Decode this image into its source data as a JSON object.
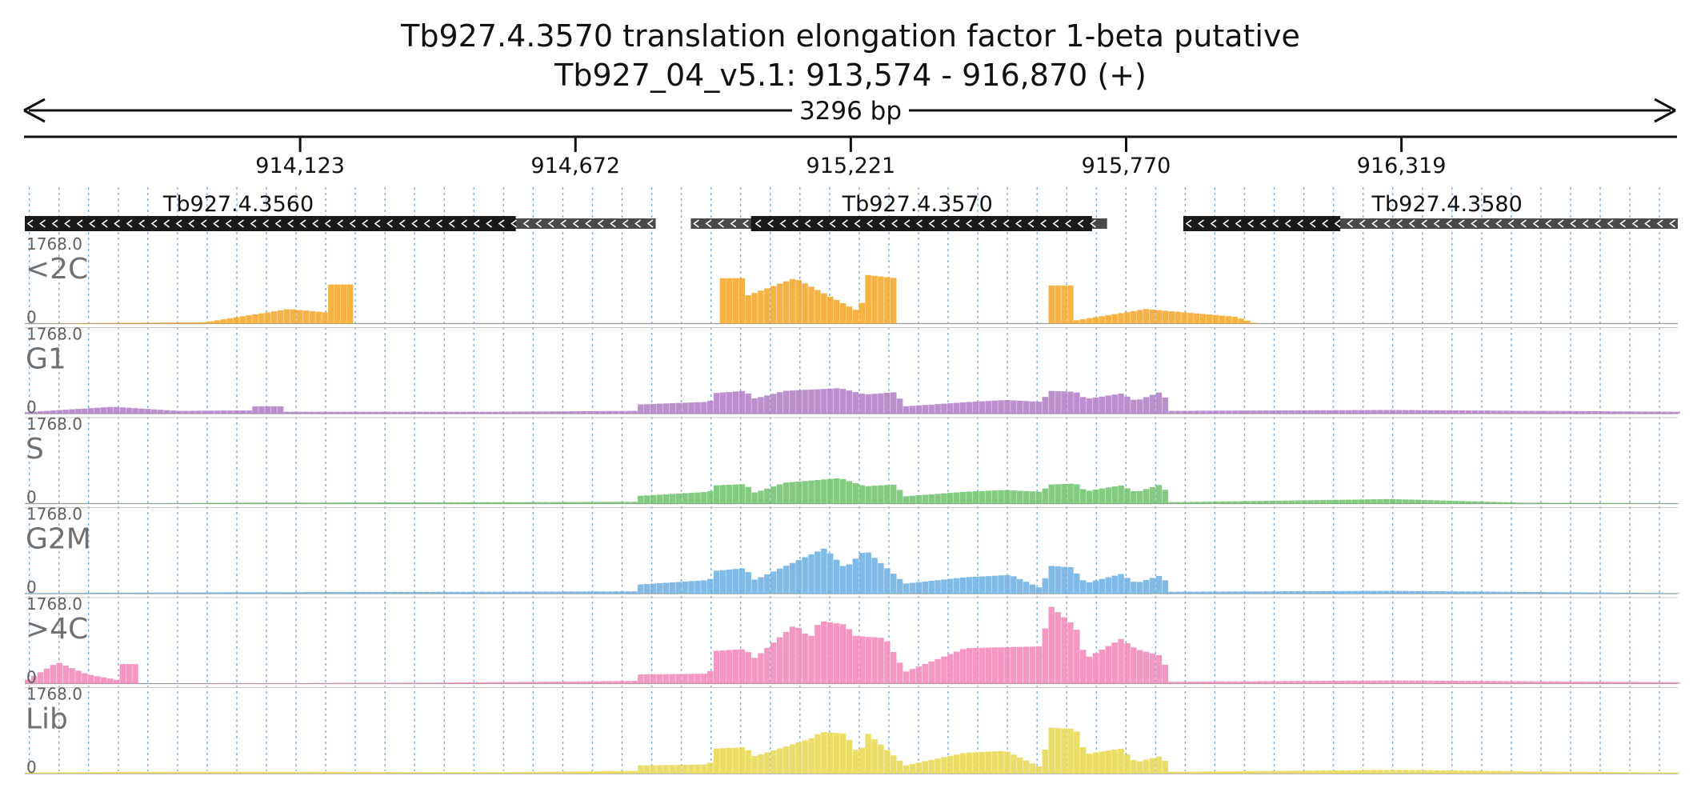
{
  "title": {
    "gene_line": "Tb927.4.3570  translation elongation factor 1-beta  putative",
    "locus_line": "Tb927_04_v5.1: 913,574 - 916,870 (+)"
  },
  "span_label": "3296 bp",
  "colors": {
    "text": "#111111",
    "grid": "#7aaede",
    "gene_cds": "#1a1a1a",
    "gene_utr": "#4a4a4a"
  },
  "chart_data": {
    "type": "area",
    "chart_kind": "genome browser coverage tracks",
    "xlim": [
      913574,
      916870
    ],
    "xticks": [
      914123,
      914672,
      915221,
      915770,
      916319
    ],
    "xtick_labels": [
      "914,123",
      "914,672",
      "915,221",
      "915,770",
      "916,319"
    ],
    "genes": [
      {
        "name": "Tb927.4.3560",
        "strand": "-",
        "cds": [
          913574,
          914553
        ],
        "utr": [
          914553,
          914832
        ]
      },
      {
        "name": "Tb927.4.3570",
        "strand": "-",
        "cds": [
          915022,
          915702
        ],
        "utr": [
          914902,
          915732
        ]
      },
      {
        "name": "Tb927.4.3580",
        "strand": "-",
        "cds": [
          915884,
          916197
        ],
        "utr": [
          916197,
          916870
        ]
      }
    ],
    "ylim": [
      0,
      1768.0
    ],
    "segments": [
      {
        "from": 913574,
        "to": 913934,
        "r": [
          1,
          3
        ]
      },
      {
        "from": 913934,
        "to": 914033,
        "r": [
          3,
          2
        ]
      },
      {
        "from": 914033,
        "to": 914174,
        "r": [
          2,
          5
        ]
      },
      {
        "from": 914174,
        "to": 914203,
        "r": [
          12,
          14
        ]
      },
      {
        "from": 914203,
        "to": 914443,
        "r": [
          2,
          1
        ]
      },
      {
        "from": 914443,
        "to": 914803,
        "r": [
          1,
          3
        ]
      },
      {
        "from": 914803,
        "to": 914886,
        "r": [
          3,
          4
        ]
      },
      {
        "from": 914886,
        "to": 914956,
        "r": [
          8,
          9
        ]
      },
      {
        "from": 914956,
        "to": 915103,
        "r": [
          10,
          12
        ]
      },
      {
        "from": 915103,
        "to": 915173,
        "r": [
          10,
          13
        ]
      },
      {
        "from": 915173,
        "to": 915267,
        "r": [
          10,
          14
        ]
      },
      {
        "from": 915267,
        "to": 915330,
        "r": [
          12,
          10
        ]
      },
      {
        "from": 915330,
        "to": 915436,
        "r": [
          4,
          3
        ]
      },
      {
        "from": 915436,
        "to": 915493,
        "r": [
          5,
          3
        ]
      },
      {
        "from": 915493,
        "to": 915582,
        "r": [
          3,
          4
        ]
      },
      {
        "from": 915582,
        "to": 915656,
        "r": [
          11,
          13
        ]
      },
      {
        "from": 915656,
        "to": 915721,
        "r": [
          11,
          10
        ]
      },
      {
        "from": 915721,
        "to": 915824,
        "r": [
          8,
          7
        ]
      },
      {
        "from": 915824,
        "to": 915860,
        "r": [
          8,
          9
        ]
      },
      {
        "from": 915860,
        "to": 916073,
        "r": [
          2,
          1
        ]
      },
      {
        "from": 916073,
        "to": 916299,
        "r": [
          3,
          2
        ]
      },
      {
        "from": 916299,
        "to": 916870,
        "r": [
          1,
          2
        ]
      }
    ],
    "tracks": [
      {
        "name": "<2C",
        "color": "#f5a623",
        "ymax_label": "1768.0",
        "ymin_label": "0",
        "profile": [
          {
            "x": 913574,
            "y": 0
          },
          {
            "x": 913934,
            "y": 30
          },
          {
            "x": 914100,
            "y": 320
          },
          {
            "x": 914172,
            "y": 250
          },
          {
            "x": 914174,
            "y": 240
          },
          {
            "x": 914174,
            "y": 860
          },
          {
            "x": 914232,
            "y": 860
          },
          {
            "x": 914232,
            "y": 0
          },
          {
            "x": 914954,
            "y": 0
          },
          {
            "x": 914954,
            "y": 1000
          },
          {
            "x": 915011,
            "y": 1000
          },
          {
            "x": 915011,
            "y": 600
          },
          {
            "x": 915110,
            "y": 1000
          },
          {
            "x": 915240,
            "y": 250
          },
          {
            "x": 915254,
            "y": 1070
          },
          {
            "x": 915312,
            "y": 1000
          },
          {
            "x": 915312,
            "y": 0
          },
          {
            "x": 915615,
            "y": 0
          },
          {
            "x": 915615,
            "y": 840
          },
          {
            "x": 915664,
            "y": 840
          },
          {
            "x": 915664,
            "y": 60
          },
          {
            "x": 915810,
            "y": 320
          },
          {
            "x": 915989,
            "y": 150
          },
          {
            "x": 916030,
            "y": 0
          },
          {
            "x": 916870,
            "y": 0
          }
        ]
      },
      {
        "name": "G1",
        "color": "#b07cc6",
        "ymax_label": "1768.0",
        "ymin_label": "0",
        "profile": [
          {
            "x": 913574,
            "y": 30
          },
          {
            "x": 913750,
            "y": 150
          },
          {
            "x": 913880,
            "y": 60
          },
          {
            "x": 914030,
            "y": 70
          },
          {
            "x": 914030,
            "y": 160
          },
          {
            "x": 914088,
            "y": 160
          },
          {
            "x": 914088,
            "y": 40
          },
          {
            "x": 914500,
            "y": 40
          },
          {
            "x": 914800,
            "y": 60
          },
          {
            "x": 914800,
            "y": 200
          },
          {
            "x": 914940,
            "y": 260
          },
          {
            "x": 914950,
            "y": 450
          },
          {
            "x": 915010,
            "y": 500
          },
          {
            "x": 915030,
            "y": 330
          },
          {
            "x": 915090,
            "y": 500
          },
          {
            "x": 915200,
            "y": 560
          },
          {
            "x": 915250,
            "y": 420
          },
          {
            "x": 915310,
            "y": 470
          },
          {
            "x": 915330,
            "y": 160
          },
          {
            "x": 915450,
            "y": 250
          },
          {
            "x": 915530,
            "y": 300
          },
          {
            "x": 915600,
            "y": 260
          },
          {
            "x": 915620,
            "y": 500
          },
          {
            "x": 915670,
            "y": 480
          },
          {
            "x": 915690,
            "y": 320
          },
          {
            "x": 915760,
            "y": 440
          },
          {
            "x": 915790,
            "y": 280
          },
          {
            "x": 915845,
            "y": 500
          },
          {
            "x": 915855,
            "y": 60
          },
          {
            "x": 916299,
            "y": 80
          },
          {
            "x": 916880,
            "y": 40
          }
        ]
      },
      {
        "name": "S",
        "color": "#6cc26a",
        "ymax_label": "1768.0",
        "ymin_label": "0",
        "profile": [
          {
            "x": 913574,
            "y": 0
          },
          {
            "x": 913880,
            "y": 10
          },
          {
            "x": 914000,
            "y": 20
          },
          {
            "x": 914500,
            "y": 30
          },
          {
            "x": 914800,
            "y": 40
          },
          {
            "x": 914800,
            "y": 170
          },
          {
            "x": 914940,
            "y": 260
          },
          {
            "x": 914950,
            "y": 400
          },
          {
            "x": 915010,
            "y": 430
          },
          {
            "x": 915030,
            "y": 240
          },
          {
            "x": 915090,
            "y": 460
          },
          {
            "x": 915200,
            "y": 560
          },
          {
            "x": 915250,
            "y": 380
          },
          {
            "x": 915310,
            "y": 420
          },
          {
            "x": 915330,
            "y": 160
          },
          {
            "x": 915450,
            "y": 260
          },
          {
            "x": 915530,
            "y": 300
          },
          {
            "x": 915600,
            "y": 260
          },
          {
            "x": 915620,
            "y": 420
          },
          {
            "x": 915670,
            "y": 440
          },
          {
            "x": 915690,
            "y": 270
          },
          {
            "x": 915760,
            "y": 400
          },
          {
            "x": 915790,
            "y": 250
          },
          {
            "x": 915845,
            "y": 440
          },
          {
            "x": 915855,
            "y": 30
          },
          {
            "x": 916299,
            "y": 100
          },
          {
            "x": 916560,
            "y": 20
          },
          {
            "x": 916870,
            "y": 10
          }
        ]
      },
      {
        "name": "G2M",
        "color": "#6aaee3",
        "ymax_label": "1768.0",
        "ymin_label": "0",
        "profile": [
          {
            "x": 913574,
            "y": 10
          },
          {
            "x": 914000,
            "y": 30
          },
          {
            "x": 914500,
            "y": 40
          },
          {
            "x": 914800,
            "y": 50
          },
          {
            "x": 914800,
            "y": 200
          },
          {
            "x": 914940,
            "y": 300
          },
          {
            "x": 914950,
            "y": 500
          },
          {
            "x": 915010,
            "y": 560
          },
          {
            "x": 915030,
            "y": 300
          },
          {
            "x": 915100,
            "y": 650
          },
          {
            "x": 915170,
            "y": 1000
          },
          {
            "x": 915210,
            "y": 560
          },
          {
            "x": 915250,
            "y": 960
          },
          {
            "x": 915330,
            "y": 220
          },
          {
            "x": 915450,
            "y": 360
          },
          {
            "x": 915540,
            "y": 410
          },
          {
            "x": 915600,
            "y": 120
          },
          {
            "x": 915620,
            "y": 610
          },
          {
            "x": 915660,
            "y": 580
          },
          {
            "x": 915690,
            "y": 230
          },
          {
            "x": 915760,
            "y": 430
          },
          {
            "x": 915790,
            "y": 230
          },
          {
            "x": 915845,
            "y": 420
          },
          {
            "x": 915855,
            "y": 40
          },
          {
            "x": 916299,
            "y": 60
          },
          {
            "x": 916870,
            "y": 10
          }
        ]
      },
      {
        "name": ">4C",
        "color": "#f286b9",
        "ymax_label": "1768.0",
        "ymin_label": "0",
        "profile": [
          {
            "x": 913574,
            "y": 50
          },
          {
            "x": 913640,
            "y": 470
          },
          {
            "x": 913700,
            "y": 200
          },
          {
            "x": 913760,
            "y": 80
          },
          {
            "x": 913760,
            "y": 430
          },
          {
            "x": 913800,
            "y": 430
          },
          {
            "x": 913800,
            "y": 0
          },
          {
            "x": 914100,
            "y": 10
          },
          {
            "x": 914370,
            "y": 20
          },
          {
            "x": 914600,
            "y": 40
          },
          {
            "x": 914800,
            "y": 60
          },
          {
            "x": 914800,
            "y": 200
          },
          {
            "x": 914940,
            "y": 220
          },
          {
            "x": 914950,
            "y": 720
          },
          {
            "x": 915010,
            "y": 760
          },
          {
            "x": 915030,
            "y": 560
          },
          {
            "x": 915110,
            "y": 1300
          },
          {
            "x": 915140,
            "y": 1000
          },
          {
            "x": 915160,
            "y": 1380
          },
          {
            "x": 915210,
            "y": 1300
          },
          {
            "x": 915230,
            "y": 1050
          },
          {
            "x": 915290,
            "y": 1000
          },
          {
            "x": 915330,
            "y": 260
          },
          {
            "x": 915450,
            "y": 780
          },
          {
            "x": 915530,
            "y": 800
          },
          {
            "x": 915600,
            "y": 820
          },
          {
            "x": 915620,
            "y": 1700
          },
          {
            "x": 915670,
            "y": 1250
          },
          {
            "x": 915690,
            "y": 550
          },
          {
            "x": 915760,
            "y": 980
          },
          {
            "x": 915790,
            "y": 760
          },
          {
            "x": 915845,
            "y": 600
          },
          {
            "x": 915855,
            "y": 40
          },
          {
            "x": 916299,
            "y": 70
          },
          {
            "x": 916870,
            "y": 30
          }
        ]
      },
      {
        "name": "Lib",
        "color": "#e8d84e",
        "ymax_label": "1768.0",
        "ymin_label": "0",
        "profile": [
          {
            "x": 913574,
            "y": 20
          },
          {
            "x": 913800,
            "y": 40
          },
          {
            "x": 914100,
            "y": 40
          },
          {
            "x": 914500,
            "y": 30
          },
          {
            "x": 914800,
            "y": 60
          },
          {
            "x": 914800,
            "y": 180
          },
          {
            "x": 914940,
            "y": 200
          },
          {
            "x": 914950,
            "y": 550
          },
          {
            "x": 915010,
            "y": 580
          },
          {
            "x": 915030,
            "y": 380
          },
          {
            "x": 915150,
            "y": 800
          },
          {
            "x": 915160,
            "y": 920
          },
          {
            "x": 915210,
            "y": 880
          },
          {
            "x": 915240,
            "y": 370
          },
          {
            "x": 915250,
            "y": 930
          },
          {
            "x": 915330,
            "y": 180
          },
          {
            "x": 915450,
            "y": 460
          },
          {
            "x": 915530,
            "y": 500
          },
          {
            "x": 915600,
            "y": 140
          },
          {
            "x": 915620,
            "y": 1010
          },
          {
            "x": 915670,
            "y": 980
          },
          {
            "x": 915690,
            "y": 430
          },
          {
            "x": 915760,
            "y": 550
          },
          {
            "x": 915790,
            "y": 250
          },
          {
            "x": 915845,
            "y": 400
          },
          {
            "x": 915855,
            "y": 40
          },
          {
            "x": 916299,
            "y": 80
          },
          {
            "x": 916870,
            "y": 20
          }
        ]
      }
    ]
  }
}
